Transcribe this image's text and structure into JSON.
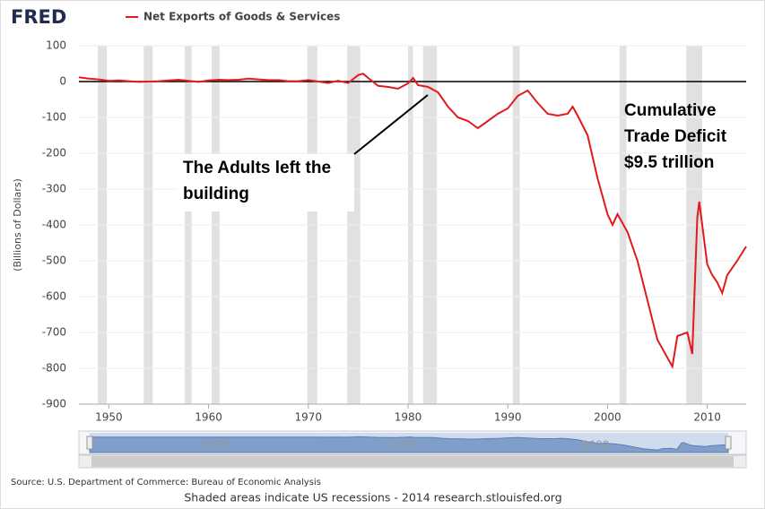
{
  "chart_data": {
    "type": "line",
    "brand": "FRED",
    "ylabel": "(Billions of Dollars)",
    "source": "Source: U.S. Department of Commerce: Bureau of Economic Analysis",
    "footer": "Shaded areas indicate US recessions - 2014 research.stlouisfed.org",
    "xlim": [
      1947,
      2013.9
    ],
    "ylim": [
      -900,
      100
    ],
    "xticks": [
      1950,
      1960,
      1970,
      1980,
      1990,
      2000,
      2010
    ],
    "yticks": [
      -900,
      -800,
      -700,
      -600,
      -500,
      -400,
      -300,
      -200,
      -100,
      0,
      100
    ],
    "navigator_ticks": [
      1960,
      1980,
      2000
    ],
    "grid": true,
    "recessions": [
      [
        1948.9,
        1949.8
      ],
      [
        1953.5,
        1954.4
      ],
      [
        1957.6,
        1958.3
      ],
      [
        1960.3,
        1961.1
      ],
      [
        1969.9,
        1970.9
      ],
      [
        1973.9,
        1975.2
      ],
      [
        1980.0,
        1980.5
      ],
      [
        1981.5,
        1982.9
      ],
      [
        1990.5,
        1991.2
      ],
      [
        2001.2,
        2001.9
      ],
      [
        2007.9,
        2009.5
      ]
    ],
    "annotations": [
      {
        "lines": [
          "The Adults left the",
          "building"
        ]
      },
      {
        "lines": [
          "Cumulative",
          "Trade Deficit",
          "$9.5 trillion"
        ]
      }
    ],
    "series": [
      {
        "name": "Net Exports of Goods & Services",
        "color": "#e31a1c",
        "x": [
          1947,
          1948,
          1949,
          1950,
          1951,
          1952,
          1953,
          1954,
          1955,
          1956,
          1957,
          1958,
          1959,
          1960,
          1961,
          1962,
          1963,
          1964,
          1965,
          1966,
          1967,
          1968,
          1969,
          1970,
          1971,
          1972,
          1973,
          1974,
          1975,
          1975.5,
          1976,
          1977,
          1978,
          1979,
          1980,
          1980.5,
          1981,
          1982,
          1983,
          1984,
          1985,
          1986,
          1987,
          1988,
          1989,
          1990,
          1991,
          1992,
          1993,
          1994,
          1995,
          1996,
          1996.5,
          1997,
          1998,
          1999,
          2000,
          2000.5,
          2001,
          2002,
          2003,
          2004,
          2005,
          2006,
          2006.5,
          2007,
          2008,
          2008.5,
          2009,
          2009.2,
          2010,
          2010.5,
          2011,
          2011.5,
          2012,
          2013,
          2013.9
        ],
        "values": [
          12,
          8,
          6,
          2,
          3,
          1,
          -1,
          0,
          1,
          3,
          5,
          2,
          -1,
          3,
          5,
          4,
          5,
          8,
          6,
          4,
          4,
          1,
          1,
          4,
          0,
          -4,
          2,
          -4,
          18,
          22,
          10,
          -12,
          -15,
          -20,
          -5,
          10,
          -10,
          -15,
          -30,
          -70,
          -100,
          -110,
          -130,
          -110,
          -90,
          -75,
          -40,
          -25,
          -60,
          -90,
          -95,
          -90,
          -70,
          -95,
          -150,
          -270,
          -370,
          -400,
          -370,
          -420,
          -500,
          -610,
          -720,
          -770,
          -795,
          -710,
          -700,
          -760,
          -380,
          -335,
          -510,
          -540,
          -560,
          -590,
          -540,
          -500,
          -460
        ]
      }
    ]
  }
}
